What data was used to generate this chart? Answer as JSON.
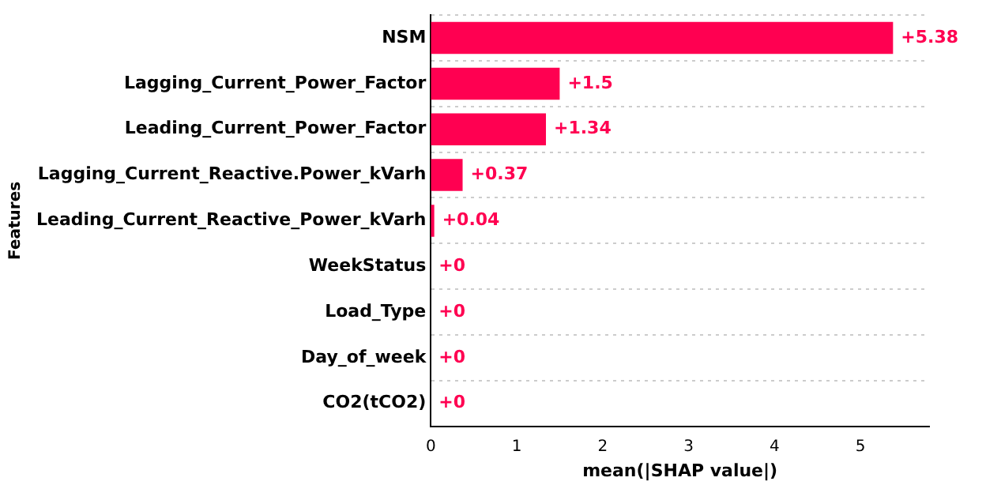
{
  "chart_data": {
    "type": "bar",
    "orientation": "horizontal",
    "categories": [
      "NSM",
      "Lagging_Current_Power_Factor",
      "Leading_Current_Power_Factor",
      "Lagging_Current_Reactive.Power_kVarh",
      "Leading_Current_Reactive_Power_kVarh",
      "WeekStatus",
      "Load_Type",
      "Day_of_week",
      "CO2(tCO2)"
    ],
    "values": [
      5.38,
      1.5,
      1.34,
      0.37,
      0.04,
      0,
      0,
      0,
      0
    ],
    "value_labels": [
      "+5.38",
      "+1.5",
      "+1.34",
      "+0.37",
      "+0.04",
      "+0",
      "+0",
      "+0",
      "+0"
    ],
    "color": "#ff0051",
    "xlim": [
      0,
      5.8
    ],
    "xticks": [
      0,
      1,
      2,
      3,
      4,
      5
    ],
    "xlabel": "mean(|SHAP value|)",
    "ylabel": "Features",
    "grid": "y",
    "legend": false
  }
}
